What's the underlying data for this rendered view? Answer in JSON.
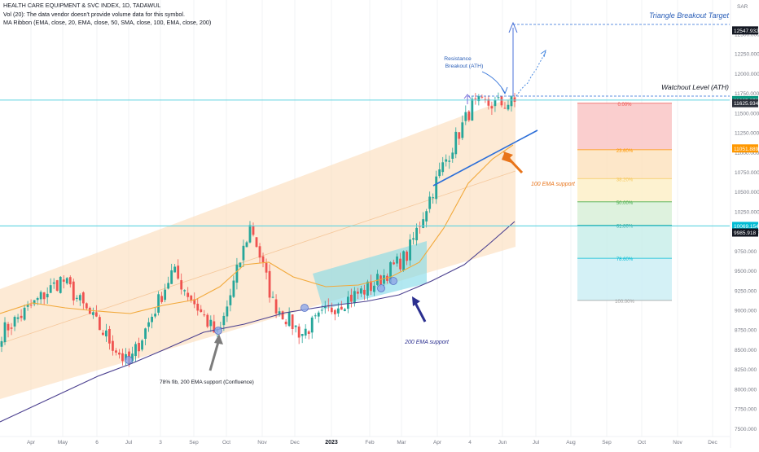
{
  "header": {
    "symbol_line": "HEALTH CARE EQUIPMENT & SVC INDEX, 1D, TADAWUL",
    "volume_line": "Vol (20): The data vendor doesn't provide volume data for this symbol.",
    "ma_line": "MA Ribbon (EMA, close, 20, EMA, close, 50, SMA, close, 100, EMA, close, 200)"
  },
  "colors": {
    "up": "#26a69a",
    "down": "#ef5350",
    "ema50": "#f2a93b",
    "ema200": "#4a3f8f",
    "channel": "#fbd9b3",
    "box": "#7fd9e8",
    "resistance": "#2b6ed8",
    "annotation_orange": "#e8741a",
    "annotation_navy": "#2b2f8f",
    "hline": "#5fd3e0"
  },
  "chart_data": {
    "type": "candlestick",
    "currency": "SAR",
    "y_ticks": [
      12500,
      12250,
      12000,
      11750,
      11500,
      11250,
      11000,
      10750,
      10500,
      10250,
      10000,
      9750,
      9500,
      9250,
      9000,
      8750,
      8500,
      8250,
      8000,
      7750,
      7500
    ],
    "y_tick_labels": [
      "12500.000",
      "12250.000",
      "12000.000",
      "11750.000",
      "11500.000",
      "11250.000",
      "11000.000",
      "10750.000",
      "10500.000",
      "10250.000",
      "10000.000",
      "9750.000",
      "9500.000",
      "9250.000",
      "9000.000",
      "8750.000",
      "8500.000",
      "8250.000",
      "8000.000",
      "7750.000",
      "7500.000"
    ],
    "ylim": [
      7400,
      12820
    ],
    "x_ticks": [
      "Apr",
      "May",
      "6",
      "Jul",
      "3",
      "Sep",
      "Oct",
      "Nov",
      "Dec",
      "2023",
      "Feb",
      "Mar",
      "Apr",
      "4",
      "Jun",
      "Jul",
      "Aug",
      "Sep",
      "Oct",
      "Nov",
      "Dec"
    ],
    "price_labels": [
      {
        "text": "12547.932",
        "value": 12547.932,
        "bg": "#131722"
      },
      {
        "text": "11665.070",
        "value": 11665.07,
        "bg": "#089981"
      },
      {
        "text": "11625.934",
        "value": 11625.934,
        "bg": "#2a2e39"
      },
      {
        "text": "11051.889",
        "value": 11051.889,
        "bg": "#ff9800"
      },
      {
        "text": "10069.154",
        "value": 10069.154,
        "bg": "#00bcd4"
      },
      {
        "text": "9985.918",
        "value": 9985.918,
        "bg": "#131722"
      }
    ],
    "fib_levels": [
      {
        "label": "0.00%",
        "value": 11625,
        "color": "#ef5350"
      },
      {
        "label": "23.60%",
        "value": 11035,
        "color": "#ff9800"
      },
      {
        "label": "38.20%",
        "value": 10670,
        "color": "#f6c85f"
      },
      {
        "label": "50.00%",
        "value": 10375,
        "color": "#4caf50"
      },
      {
        "label": "61.80%",
        "value": 10080,
        "color": "#26a69a"
      },
      {
        "label": "78.60%",
        "value": 9660,
        "color": "#00bcd4"
      },
      {
        "label": "100.00%",
        "value": 9125,
        "color": "#9e9e9e"
      }
    ],
    "key_points": [
      {
        "t": "Apr",
        "close": 8700
      },
      {
        "t": "May",
        "close": 9400
      },
      {
        "t": "Jul",
        "close": 8300
      },
      {
        "t": "Aug",
        "close": 9500
      },
      {
        "t": "Sep",
        "close": 8650
      },
      {
        "t": "Oct",
        "close": 10100
      },
      {
        "t": "Nov",
        "close": 9100
      },
      {
        "t": "Dec",
        "close": 8700
      },
      {
        "t": "2023",
        "close": 9050
      },
      {
        "t": "Feb",
        "close": 9300
      },
      {
        "t": "Mar",
        "close": 9700
      },
      {
        "t": "Apr",
        "close": 10750
      },
      {
        "t": "May",
        "close": 11600
      },
      {
        "t": "Jun",
        "close": 11630
      }
    ]
  },
  "annotations": {
    "target_title": "Triangle Breakout Target",
    "watchout": "Watchout Level (ATH)",
    "resistance_line1": "Resistance",
    "resistance_line2": "Breakout (ATH)",
    "ema100_support": "100 EMA support",
    "ema200_support": "200 EMA support",
    "confluence": "78% fib, 200 EMA support (Confluence)"
  }
}
